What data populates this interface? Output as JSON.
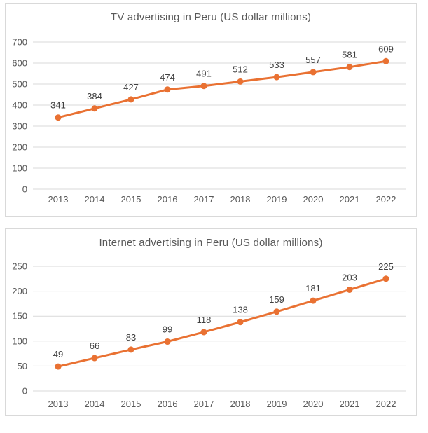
{
  "page": {
    "background": "#ffffff"
  },
  "colors": {
    "line": "#E97132",
    "grid": "#D9D9D9",
    "panel_border": "#D9D9D9",
    "axis_text": "#595959",
    "title_text": "#595959",
    "data_label_text": "#404040"
  },
  "chart_data": [
    {
      "type": "line",
      "title": "TV advertising in Peru (US dollar millions)",
      "categories": [
        "2013",
        "2014",
        "2015",
        "2016",
        "2017",
        "2018",
        "2019",
        "2020",
        "2021",
        "2022"
      ],
      "values": [
        341,
        384,
        427,
        474,
        491,
        512,
        533,
        557,
        581,
        609
      ],
      "xlabel": "",
      "ylabel": "",
      "ylim": [
        0,
        700
      ],
      "ytick_step": 100,
      "yticks": [
        0,
        100,
        200,
        300,
        400,
        500,
        600,
        700
      ],
      "grid": true,
      "legend": "none",
      "data_labels": true,
      "line_color": "#E97132",
      "marker": "circle"
    },
    {
      "type": "line",
      "title": "Internet advertising in Peru (US dollar millions)",
      "categories": [
        "2013",
        "2014",
        "2015",
        "2016",
        "2017",
        "2018",
        "2019",
        "2020",
        "2021",
        "2022"
      ],
      "values": [
        49,
        66,
        83,
        99,
        118,
        138,
        159,
        181,
        203,
        225
      ],
      "xlabel": "",
      "ylabel": "",
      "ylim": [
        0,
        250
      ],
      "ytick_step": 50,
      "yticks": [
        0,
        50,
        100,
        150,
        200,
        250
      ],
      "grid": true,
      "legend": "none",
      "data_labels": true,
      "line_color": "#E97132",
      "marker": "circle"
    }
  ]
}
